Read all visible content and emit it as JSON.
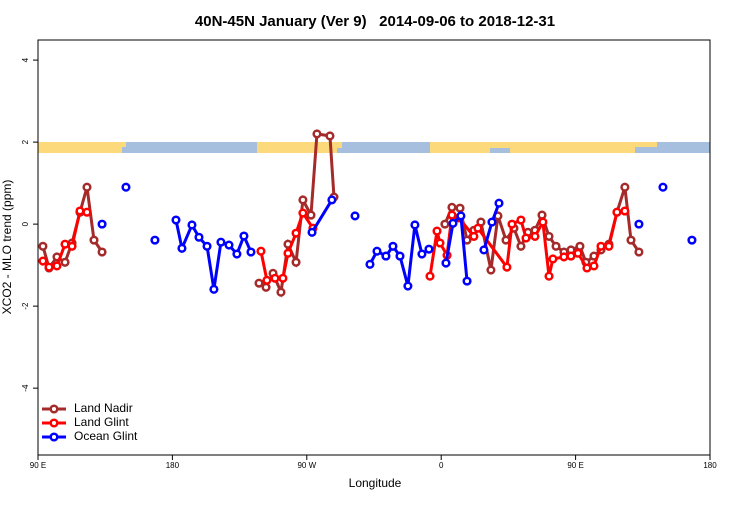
{
  "chart_data": {
    "type": "line",
    "title": "40N-45N January (Ver 9)   2014-09-06 to 2018-12-31",
    "x_label": "Longitude",
    "y_label": "XCO2 - MLO trend (ppm)",
    "xlim": [
      90,
      540
    ],
    "ylim": [
      -5.63,
      4.49
    ],
    "xticks": [
      {
        "value": 90,
        "label": "90 E"
      },
      {
        "value": 180,
        "label": "180"
      },
      {
        "value": 270,
        "label": "90 W"
      },
      {
        "value": 360,
        "label": "0"
      },
      {
        "value": 450,
        "label": "90 E"
      },
      {
        "value": 540,
        "label": "180"
      }
    ],
    "yticks": [
      4,
      2,
      0,
      -2,
      -4
    ],
    "grid": false,
    "legend": "bottom-left",
    "series": [
      {
        "name": "Land Nadir",
        "color": "#a52a2a",
        "x": [
          93.3,
          97.4,
          102.7,
          108.1,
          112.8,
          118.1,
          122.8,
          127.5,
          132.9,
          null,
          238.0,
          242.7,
          247.4,
          252.7,
          257.4,
          262.8,
          267.4,
          272.8,
          276.8,
          285.5,
          288.2,
          null,
          362.5,
          367.2,
          372.6,
          377.3,
          381.9,
          386.6,
          393.3,
          398.0,
          403.4,
          408.7,
          413.4,
          418.1,
          422.8,
          427.5,
          432.2,
          436.9,
          442.2,
          446.9,
          452.9,
          456.9,
          462.3,
          467.0,
          472.3,
          477.7,
          483.0,
          487.1,
          492.4
        ],
        "values": [
          -0.54,
          -1.07,
          -0.8,
          -0.93,
          -0.46,
          0.29,
          0.9,
          -0.39,
          -0.68,
          null,
          -1.44,
          -1.54,
          -1.2,
          -1.66,
          -0.49,
          -0.93,
          0.59,
          0.22,
          2.2,
          2.15,
          0.66,
          null,
          0,
          0.41,
          0.39,
          -0.39,
          -0.15,
          0.05,
          -1.12,
          0.2,
          -0.39,
          -0.1,
          -0.54,
          -0.2,
          -0.15,
          0.22,
          -0.3,
          -0.54,
          -0.68,
          -0.63,
          -0.54,
          -0.93,
          -0.78,
          -0.63,
          -0.49,
          0.29,
          0.9,
          -0.39,
          -0.68
        ]
      },
      {
        "name": "Land Glint",
        "color": "#ff0000",
        "x": [
          93.3,
          97.4,
          102.7,
          108.1,
          112.8,
          118.1,
          122.8,
          null,
          239.3,
          243.3,
          248.7,
          254.0,
          257.4,
          262.8,
          267.4,
          274.1,
          null,
          352.5,
          357.2,
          359.2,
          363.9,
          367.2,
          371.9,
          381.9,
          384.6,
          404.0,
          407.4,
          413.4,
          416.8,
          422.8,
          428.1,
          432.2,
          434.8,
          442.2,
          446.9,
          451.6,
          457.6,
          462.3,
          467.0,
          472.3,
          477.7,
          483.0
        ],
        "values": [
          -0.9,
          -1.05,
          -1.02,
          -0.49,
          -0.54,
          0.32,
          0.29,
          null,
          -0.66,
          -1.37,
          -1.32,
          -1.32,
          -0.71,
          -0.22,
          0.27,
          -0.1,
          null,
          -1.27,
          -0.17,
          -0.46,
          -0.76,
          0.22,
          0.15,
          -0.3,
          -0.1,
          -1.05,
          0,
          0.1,
          -0.34,
          -0.3,
          0.05,
          -1.27,
          -0.85,
          -0.8,
          -0.78,
          -0.71,
          -1.07,
          -1.02,
          -0.54,
          -0.54,
          0.29,
          0.32
        ]
      },
      {
        "name": "Ocean Glint",
        "color": "#0000ff",
        "x": [
          132.9,
          null,
          148.9,
          null,
          168.3,
          null,
          182.4,
          186.4,
          193.1,
          197.8,
          203.2,
          207.8,
          212.5,
          217.9,
          223.2,
          227.9,
          232.6,
          null,
          273.5,
          286.8,
          null,
          302.3,
          null,
          312.3,
          317.0,
          323.0,
          327.7,
          332.4,
          337.7,
          342.4,
          347.1,
          351.8,
          null,
          363.2,
          367.9,
          373.2,
          377.3,
          null,
          388.6,
          394.0,
          398.7,
          null,
          492.4,
          null,
          508.5,
          null,
          527.9
        ],
        "values": [
          0,
          null,
          0.9,
          null,
          -0.39,
          null,
          0.1,
          -0.59,
          -0.02,
          -0.32,
          -0.54,
          -1.59,
          -0.44,
          -0.51,
          -0.73,
          -0.29,
          -0.68,
          null,
          -0.2,
          0.59,
          null,
          0.2,
          null,
          -0.98,
          -0.66,
          -0.78,
          -0.54,
          -0.78,
          -1.51,
          -0.02,
          -0.73,
          -0.61,
          null,
          -0.95,
          0.02,
          0.2,
          -1.39,
          null,
          -0.63,
          0.05,
          0.51,
          null,
          0,
          null,
          0.9,
          null,
          -0.39
        ]
      }
    ]
  }
}
